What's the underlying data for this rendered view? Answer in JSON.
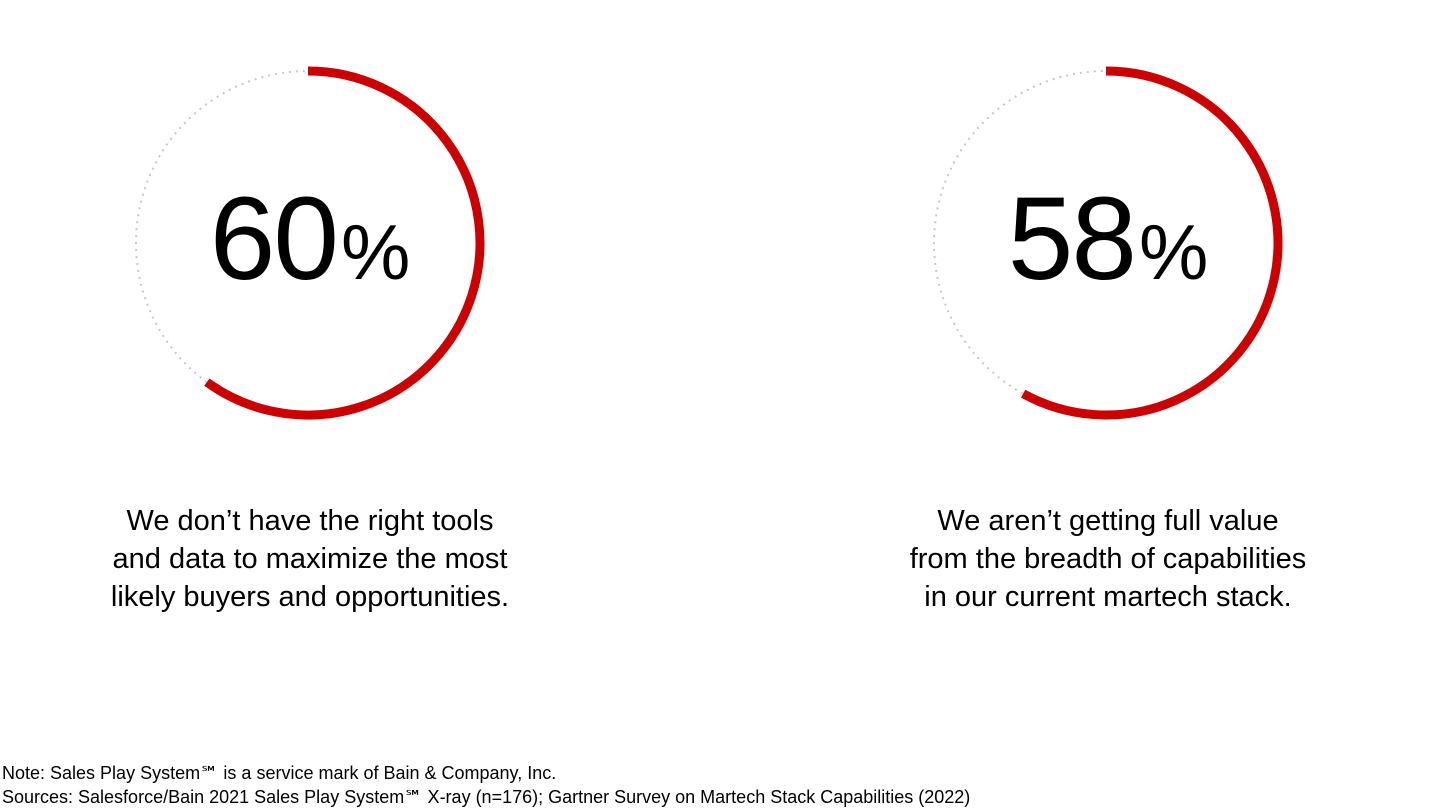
{
  "colors": {
    "accent": "#cc0000",
    "track": "#c8c8c8",
    "text": "#000000"
  },
  "chart_data": [
    {
      "type": "pie",
      "value": 60,
      "value_text": "60",
      "unit": "%",
      "caption_lines": [
        "We don’t have the right tools",
        "and data to maximize the most",
        "likely buyers and opportunities."
      ]
    },
    {
      "type": "pie",
      "value": 58,
      "value_text": "58",
      "unit": "%",
      "caption_lines": [
        "We aren’t getting full value",
        "from the breadth of capabilities",
        "in our current martech stack."
      ]
    }
  ],
  "footnotes": {
    "note": "Note: Sales Play System℠ is a service mark of Bain & Company, Inc.",
    "sources": "Sources: Salesforce/Bain 2021 Sales Play System℠ X-ray (n=176); Gartner Survey on Martech Stack Capabilities (2022)"
  }
}
